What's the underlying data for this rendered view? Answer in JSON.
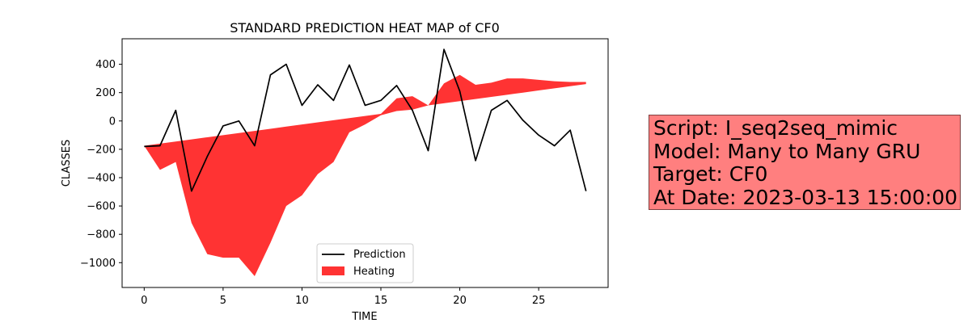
{
  "chart_data": {
    "type": "line",
    "title": "STANDARD PREDICTION HEAT MAP of CF0",
    "xlabel": "TIME",
    "ylabel": "CLASSES",
    "xlim": [
      -1.4,
      29.4
    ],
    "ylim": [
      -1175,
      580
    ],
    "x_ticks": [
      0,
      5,
      10,
      15,
      20,
      25
    ],
    "y_ticks": [
      -1000,
      -800,
      -600,
      -400,
      -200,
      0,
      200,
      400
    ],
    "x_tick_labels": [
      "0",
      "5",
      "10",
      "15",
      "20",
      "25"
    ],
    "y_tick_labels": [
      "−1000",
      "−800",
      "−600",
      "−400",
      "−200",
      "0",
      "200",
      "400"
    ],
    "legend_position": "lower center",
    "grid": false,
    "series": [
      {
        "name": "Prediction",
        "kind": "line",
        "color": "#000000",
        "x": [
          0,
          1,
          2,
          3,
          4,
          5,
          6,
          7,
          8,
          9,
          10,
          11,
          12,
          13,
          14,
          15,
          16,
          17,
          18,
          19,
          20,
          21,
          22,
          23,
          24,
          25,
          26,
          27,
          28
        ],
        "y": [
          -180,
          -175,
          75,
          -495,
          -250,
          -35,
          0,
          -175,
          325,
          400,
          110,
          255,
          145,
          395,
          110,
          145,
          250,
          75,
          -210,
          505,
          210,
          -280,
          75,
          145,
          5,
          -100,
          -175,
          -65,
          -495
        ]
      },
      {
        "name": "Heating",
        "kind": "fill_between",
        "color": "#ff0000",
        "opacity": 0.8,
        "x": [
          0,
          1,
          2,
          3,
          4,
          5,
          6,
          7,
          8,
          9,
          10,
          11,
          12,
          13,
          14,
          15,
          16,
          17,
          18,
          19,
          20,
          21,
          22,
          23,
          24,
          25,
          26,
          27,
          28
        ],
        "upper": [
          -175,
          -160,
          -145,
          -130,
          -115,
          -100,
          -85,
          -70,
          -55,
          -40,
          -25,
          -10,
          5,
          20,
          35,
          50,
          160,
          175,
          110,
          265,
          325,
          255,
          270,
          300,
          300,
          290,
          280,
          275,
          275
        ],
        "lower": [
          -175,
          -345,
          -290,
          -720,
          -940,
          -965,
          -965,
          -1095,
          -860,
          -600,
          -525,
          -375,
          -290,
          -80,
          -25,
          40,
          70,
          80,
          110,
          125,
          140,
          155,
          170,
          185,
          200,
          215,
          230,
          245,
          260
        ]
      }
    ]
  },
  "info_box": {
    "lines": [
      "Script: I_seq2seq_mimic",
      "Model: Many to Many GRU",
      "Target: CF0",
      "At Date: 2023-03-13 15:00:00"
    ],
    "background": "#ff8080"
  }
}
